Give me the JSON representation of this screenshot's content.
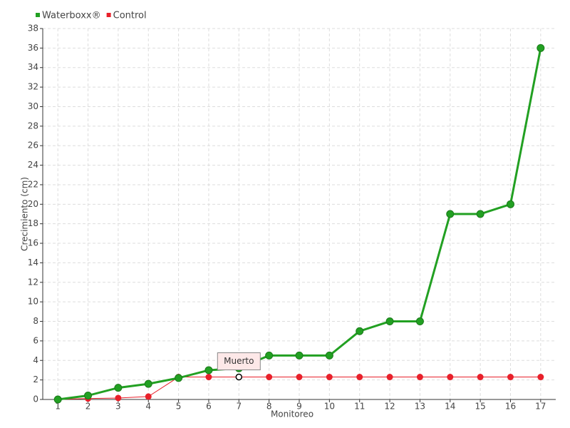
{
  "chart_data": {
    "type": "line",
    "x_label": "Monitoreo",
    "y_label": "Crecimiento (cm)",
    "x": [
      1,
      2,
      3,
      4,
      5,
      6,
      7,
      8,
      9,
      10,
      11,
      12,
      13,
      14,
      15,
      16,
      17
    ],
    "series": [
      {
        "name": "Waterboxx®",
        "color": "#22a022",
        "values": [
          0,
          0.4,
          1.2,
          1.6,
          2.2,
          3,
          3.2,
          4.5,
          4.5,
          4.5,
          7,
          8,
          8,
          19,
          19,
          20,
          36
        ]
      },
      {
        "name": "Control",
        "color": "#e8202a",
        "values": [
          0,
          0.1,
          0.15,
          0.3,
          2.3,
          2.3,
          2.3,
          2.3,
          2.3,
          2.3,
          2.3,
          2.3,
          2.3,
          2.3,
          2.3,
          2.3,
          2.3
        ]
      }
    ],
    "annotation": {
      "text": "Muerto",
      "x": 7,
      "series": 1
    },
    "xlim": [
      0.5,
      17.5
    ],
    "xticks": [
      1,
      2,
      3,
      4,
      5,
      6,
      7,
      8,
      9,
      10,
      11,
      12,
      13,
      14,
      15,
      16,
      17
    ],
    "ylim": [
      0,
      38
    ],
    "yticks": [
      0,
      2,
      4,
      6,
      8,
      10,
      12,
      14,
      16,
      18,
      20,
      22,
      24,
      26,
      28,
      30,
      32,
      34,
      36,
      38
    ],
    "grid": true,
    "legend": "top-left"
  }
}
